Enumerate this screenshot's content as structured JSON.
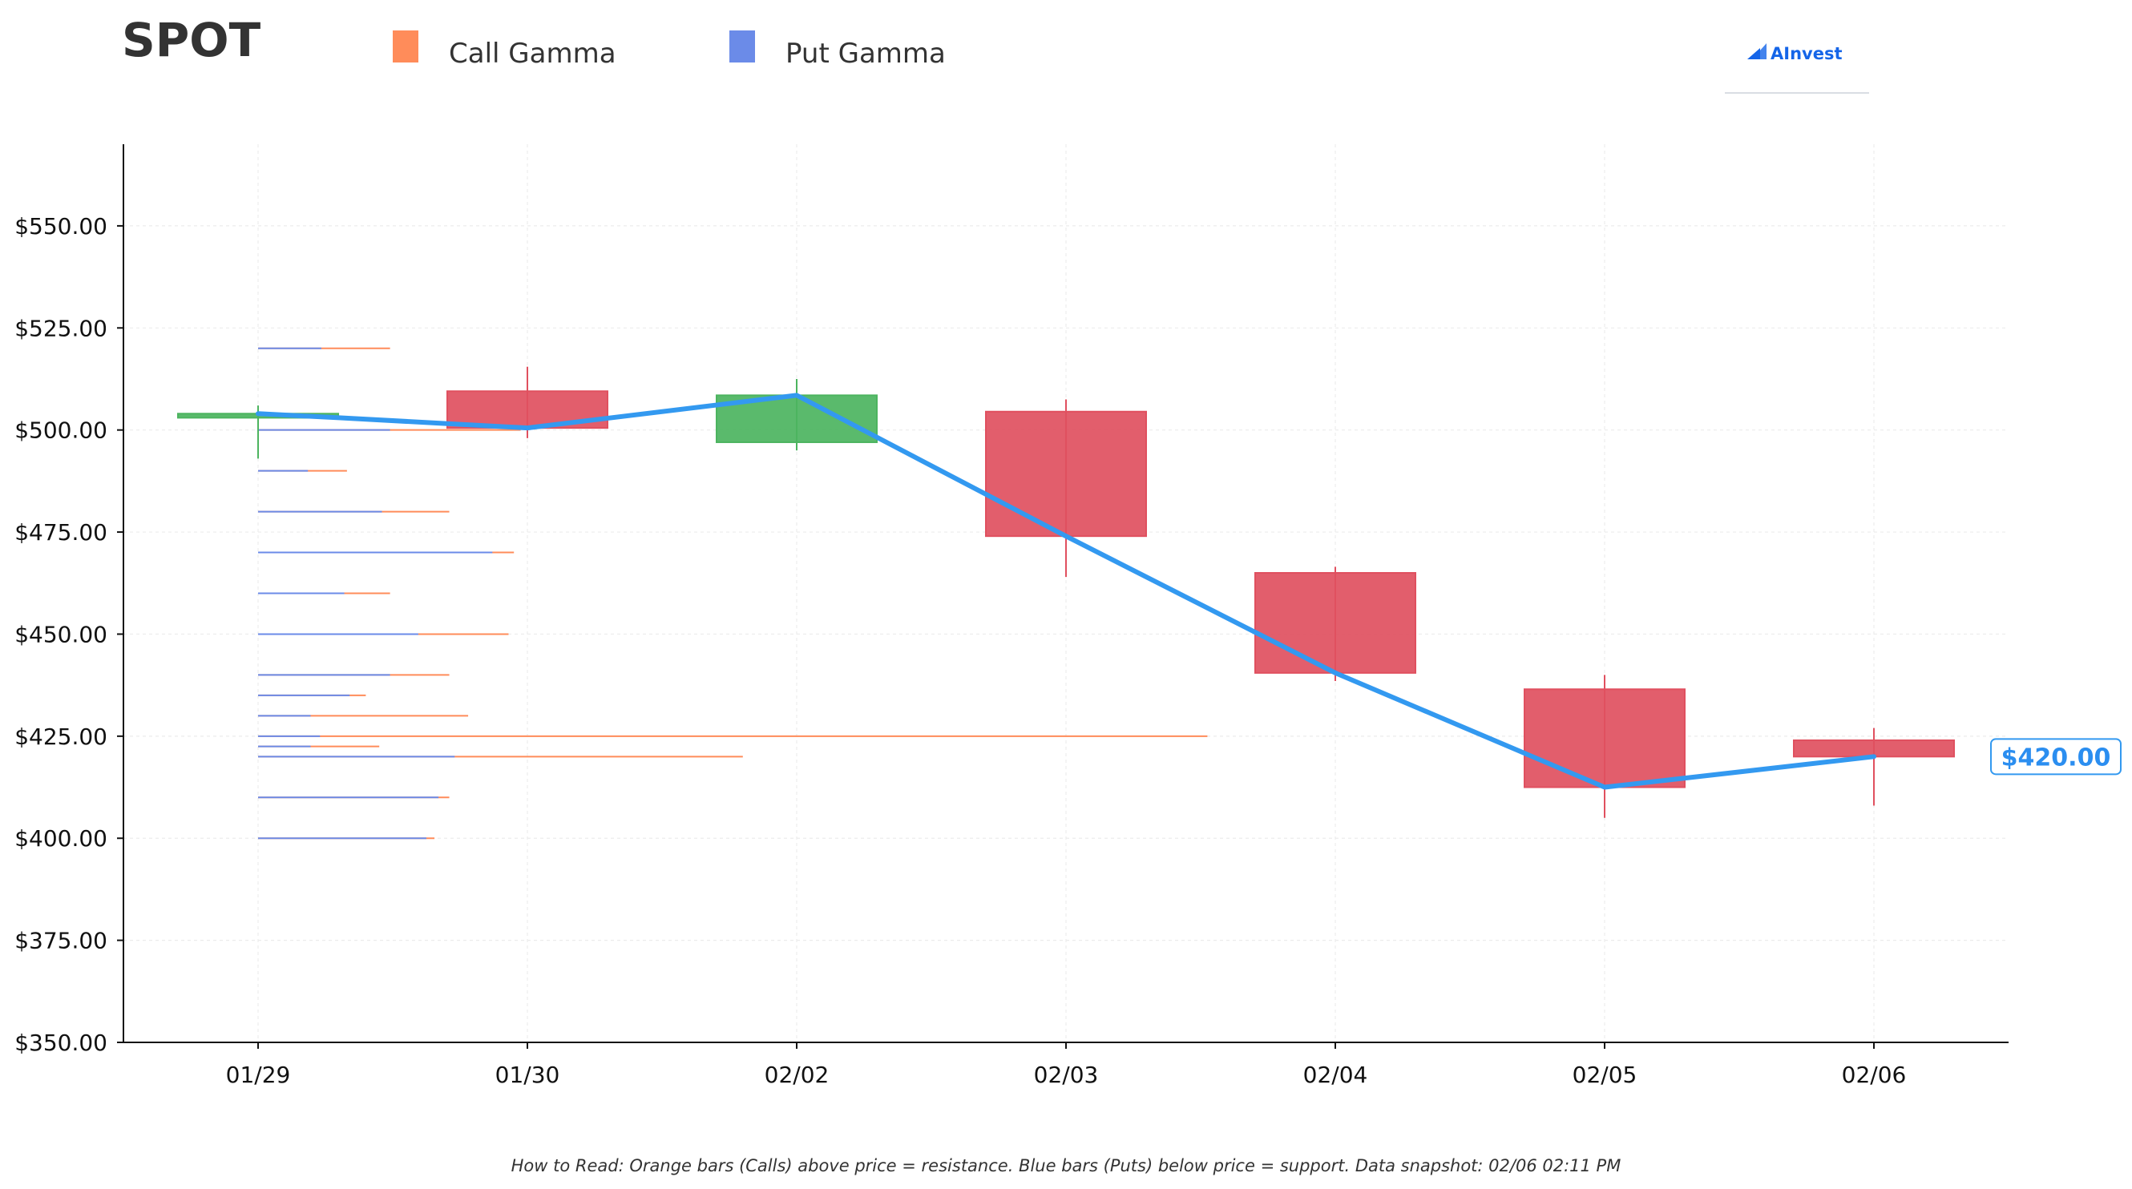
{
  "title": "SPOT",
  "legend": [
    {
      "label": "Call Gamma",
      "color": "#ff8c5a"
    },
    {
      "label": "Put Gamma",
      "color": "#6b8be8"
    }
  ],
  "logo": {
    "text": "AInvest",
    "icon": "ainvest-logo-icon"
  },
  "caption": "How to Read: Orange bars (Calls) above price = resistance. Blue bars (Puts) below price = support. Data snapshot: 02/06 02:11 PM",
  "colors": {
    "up": "#4cb45f",
    "down": "#e0505f",
    "price_line": "#3399f0",
    "call": "#ff8c5a",
    "put": "#6b8be8"
  },
  "chart_data": {
    "type": "candlestick",
    "categories": [
      "01/29",
      "01/30",
      "02/02",
      "02/03",
      "02/04",
      "02/05",
      "02/06"
    ],
    "ylim": [
      350,
      570
    ],
    "yticks": [
      350,
      375,
      400,
      425,
      450,
      475,
      500,
      525,
      550
    ],
    "ytick_labels": [
      "$350.00",
      "$375.00",
      "$400.00",
      "$425.00",
      "$450.00",
      "$475.00",
      "$500.00",
      "$525.00",
      "$550.00"
    ],
    "grid": true,
    "candles": [
      {
        "date": "01/29",
        "open": 503,
        "close": 504,
        "high": 506,
        "low": 493
      },
      {
        "date": "01/30",
        "open": 509.5,
        "close": 500.5,
        "high": 515.5,
        "low": 498
      },
      {
        "date": "02/02",
        "open": 497,
        "close": 508.5,
        "high": 512.5,
        "low": 495
      },
      {
        "date": "02/03",
        "open": 504.5,
        "close": 474,
        "high": 507.5,
        "low": 464
      },
      {
        "date": "02/04",
        "open": 465,
        "close": 440.5,
        "high": 466.5,
        "low": 438.5
      },
      {
        "date": "02/05",
        "open": 436.5,
        "close": 412.5,
        "high": 440,
        "low": 405
      },
      {
        "date": "02/06",
        "open": 424,
        "close": 420,
        "high": 427,
        "low": 408
      }
    ],
    "price_line": {
      "name": "Close",
      "points": [
        {
          "x": "01/29",
          "y": 504
        },
        {
          "x": "01/29.5",
          "y": 503
        },
        {
          "x": "01/30",
          "y": 500.5
        },
        {
          "x": "02/02",
          "y": 508.5
        },
        {
          "x": "02/03",
          "y": 474
        },
        {
          "x": "02/04",
          "y": 440.5
        },
        {
          "x": "02/05",
          "y": 412.5
        },
        {
          "x": "02/06",
          "y": 420
        }
      ]
    },
    "last_price_label": "$420.00",
    "gamma_levels": [
      {
        "strike": 520,
        "put": 0.47,
        "call": 0.98
      },
      {
        "strike": 500,
        "put": 0.98,
        "call": 1.95
      },
      {
        "strike": 490,
        "put": 0.37,
        "call": 0.66
      },
      {
        "strike": 480,
        "put": 0.92,
        "call": 1.42
      },
      {
        "strike": 470,
        "put": 1.74,
        "call": 1.9
      },
      {
        "strike": 460,
        "put": 0.64,
        "call": 0.98
      },
      {
        "strike": 450,
        "put": 1.19,
        "call": 1.86
      },
      {
        "strike": 440,
        "put": 0.98,
        "call": 1.42
      },
      {
        "strike": 435,
        "put": 0.68,
        "call": 0.8
      },
      {
        "strike": 430,
        "put": 0.39,
        "call": 1.56
      },
      {
        "strike": 425,
        "put": 0.46,
        "call": 7.05
      },
      {
        "strike": 422.5,
        "put": 0.39,
        "call": 0.9
      },
      {
        "strike": 420,
        "put": 1.46,
        "call": 3.6
      },
      {
        "strike": 410,
        "put": 1.34,
        "call": 1.42
      },
      {
        "strike": 400,
        "put": 1.25,
        "call": 1.31
      }
    ]
  }
}
